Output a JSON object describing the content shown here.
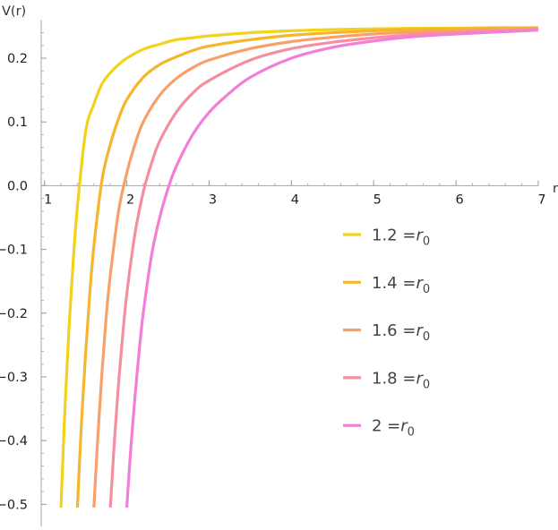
{
  "chart_data": {
    "type": "line",
    "title": "",
    "xlabel": "r",
    "ylabel": "V(r)",
    "xlim": [
      0.96,
      7.0
    ],
    "ylim": [
      -0.515,
      0.252
    ],
    "x_ticks": [
      1,
      2,
      3,
      4,
      5,
      6,
      7
    ],
    "x_tick_labels": [
      "1",
      "2",
      "3",
      "4",
      "5",
      "6",
      "7"
    ],
    "y_ticks": [
      0.2,
      0.1,
      0.0,
      -0.1,
      -0.2,
      -0.3,
      -0.4,
      -0.5
    ],
    "y_tick_labels": [
      "0.2",
      "0.1",
      "0.0",
      "−0.1",
      "−0.2",
      "−0.3",
      "−0.4",
      "−0.5"
    ],
    "grid": false,
    "legend_position": "center-right",
    "series": [
      {
        "name": "1.2 =r0",
        "legend_value": "1.2 =",
        "legend_symbol": "r",
        "legend_subscript": "0",
        "color": "#f2d21a",
        "x": [
          1.2,
          1.25,
          1.3,
          1.35,
          1.4,
          1.5,
          1.6,
          1.7,
          1.8,
          1.9,
          2.0,
          2.2,
          2.4,
          2.6,
          2.8,
          3.0,
          3.5,
          4.0,
          4.5,
          5.0,
          5.5,
          6.0,
          6.5,
          7.0
        ],
        "y": [
          -0.505,
          -0.345,
          -0.218,
          -0.116,
          -0.033,
          0.085,
          0.128,
          0.16,
          0.177,
          0.19,
          0.2,
          0.214,
          0.222,
          0.229,
          0.232,
          0.235,
          0.24,
          0.243,
          0.245,
          0.246,
          0.247,
          0.247,
          0.248,
          0.248
        ]
      },
      {
        "name": "1.4 =r0",
        "legend_value": "1.4 =",
        "legend_symbol": "r",
        "legend_subscript": "0",
        "color": "#f5b52d",
        "x": [
          1.4,
          1.45,
          1.5,
          1.55,
          1.6,
          1.7,
          1.8,
          1.9,
          2.0,
          2.2,
          2.4,
          2.6,
          2.8,
          3.0,
          3.5,
          4.0,
          4.5,
          5.0,
          5.5,
          6.0,
          6.5,
          7.0
        ],
        "y": [
          -0.505,
          -0.37,
          -0.262,
          -0.17,
          -0.095,
          0.01,
          0.065,
          0.105,
          0.135,
          0.17,
          0.19,
          0.202,
          0.212,
          0.219,
          0.229,
          0.236,
          0.24,
          0.243,
          0.245,
          0.246,
          0.247,
          0.247
        ]
      },
      {
        "name": "1.6 =r0",
        "legend_value": "1.6 =",
        "legend_symbol": "r",
        "legend_subscript": "0",
        "color": "#f7a06a",
        "x": [
          1.6,
          1.65,
          1.7,
          1.75,
          1.8,
          1.9,
          2.0,
          2.1,
          2.2,
          2.4,
          2.6,
          2.8,
          3.0,
          3.5,
          4.0,
          4.5,
          5.0,
          5.5,
          6.0,
          6.5,
          7.0
        ],
        "y": [
          -0.505,
          -0.39,
          -0.29,
          -0.205,
          -0.14,
          -0.04,
          0.02,
          0.065,
          0.1,
          0.142,
          0.168,
          0.185,
          0.197,
          0.215,
          0.226,
          0.233,
          0.238,
          0.241,
          0.243,
          0.245,
          0.246
        ]
      },
      {
        "name": "1.8 =r0",
        "legend_value": "1.8 =",
        "legend_symbol": "r",
        "legend_subscript": "0",
        "color": "#f58ea0",
        "x": [
          1.8,
          1.85,
          1.9,
          1.95,
          2.0,
          2.1,
          2.2,
          2.3,
          2.4,
          2.6,
          2.8,
          3.0,
          3.5,
          4.0,
          4.5,
          5.0,
          5.5,
          6.0,
          6.5,
          7.0
        ],
        "y": [
          -0.505,
          -0.4,
          -0.31,
          -0.235,
          -0.17,
          -0.075,
          -0.01,
          0.035,
          0.07,
          0.115,
          0.145,
          0.165,
          0.197,
          0.215,
          0.225,
          0.232,
          0.237,
          0.24,
          0.243,
          0.245
        ]
      },
      {
        "name": "2 =r0",
        "legend_value": "2 =",
        "legend_symbol": "r",
        "legend_subscript": "0",
        "color": "#f27ed8",
        "x": [
          2.0,
          2.05,
          2.1,
          2.15,
          2.2,
          2.3,
          2.4,
          2.5,
          2.6,
          2.8,
          3.0,
          3.2,
          3.5,
          4.0,
          4.5,
          5.0,
          5.5,
          6.0,
          6.5,
          7.0
        ],
        "y": [
          -0.505,
          -0.41,
          -0.33,
          -0.26,
          -0.2,
          -0.11,
          -0.05,
          -0.005,
          0.03,
          0.08,
          0.115,
          0.14,
          0.17,
          0.2,
          0.217,
          0.227,
          0.234,
          0.238,
          0.241,
          0.244
        ]
      }
    ]
  }
}
